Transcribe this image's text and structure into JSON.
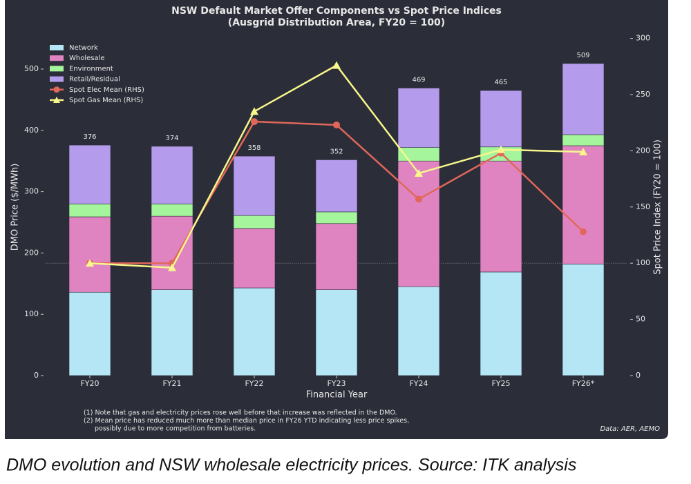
{
  "chart_data": {
    "type": "bar",
    "stacked": true,
    "title": "NSW Default Market Offer Components vs Spot Price Indices",
    "subtitle": "(Ausgrid Distribution Area, FY20 = 100)",
    "x_label": "Financial Year",
    "y_label": "DMO Price ($/MWh)",
    "y2_label": "Spot Price Index (FY20 = 100)",
    "categories": [
      "FY20",
      "FY21",
      "FY22",
      "FY23",
      "FY24",
      "FY25",
      "FY26*"
    ],
    "series": [
      {
        "name": "Network",
        "type": "bar",
        "color": "#b4e6f6",
        "values": [
          136,
          140,
          143,
          140,
          145,
          169,
          182
        ]
      },
      {
        "name": "Wholesale",
        "type": "bar",
        "color": "#e084c1",
        "values": [
          123,
          120,
          97,
          108,
          205,
          181,
          193
        ]
      },
      {
        "name": "Environment",
        "type": "bar",
        "color": "#a4f59b",
        "values": [
          21,
          20,
          21,
          19,
          22,
          23,
          18
        ]
      },
      {
        "name": "Retail/Residual",
        "type": "bar",
        "color": "#b49beb",
        "values": [
          96,
          94,
          97,
          85,
          97,
          92,
          116
        ]
      },
      {
        "name": "Spot Elec Mean (RHS)",
        "type": "line",
        "marker": "circle",
        "axis": "y2",
        "color": "#e0675a",
        "values": [
          100,
          100,
          226,
          223,
          157,
          198,
          128
        ]
      },
      {
        "name": "Spot Gas Mean (RHS)",
        "type": "line",
        "marker": "triangle",
        "axis": "y2",
        "color": "#f8f78c",
        "values": [
          100,
          96,
          235,
          276,
          180,
          201,
          199
        ]
      }
    ],
    "totals": [
      376,
      374,
      358,
      352,
      469,
      465,
      509
    ],
    "ylim": [
      0,
      550
    ],
    "yticks": [
      0,
      100,
      200,
      300,
      400,
      500
    ],
    "y2lim": [
      0,
      300
    ],
    "y2ticks": [
      0,
      50,
      100,
      150,
      200,
      250,
      300
    ],
    "reference_line": {
      "value": 100,
      "axis": "y2"
    },
    "legend": "upper left",
    "notes": [
      "(1) Note that gas and electricity prices rose well before that increase was reflected in the DMO.",
      "(2) Mean price has reduced much more than median price in FY26 YTD indicating less price spikes,",
      "possibly due to more competition from batteries."
    ],
    "source": "Data: AER, AEMO"
  },
  "caption": "DMO evolution and NSW wholesale electricity prices. Source: ITK analysis"
}
